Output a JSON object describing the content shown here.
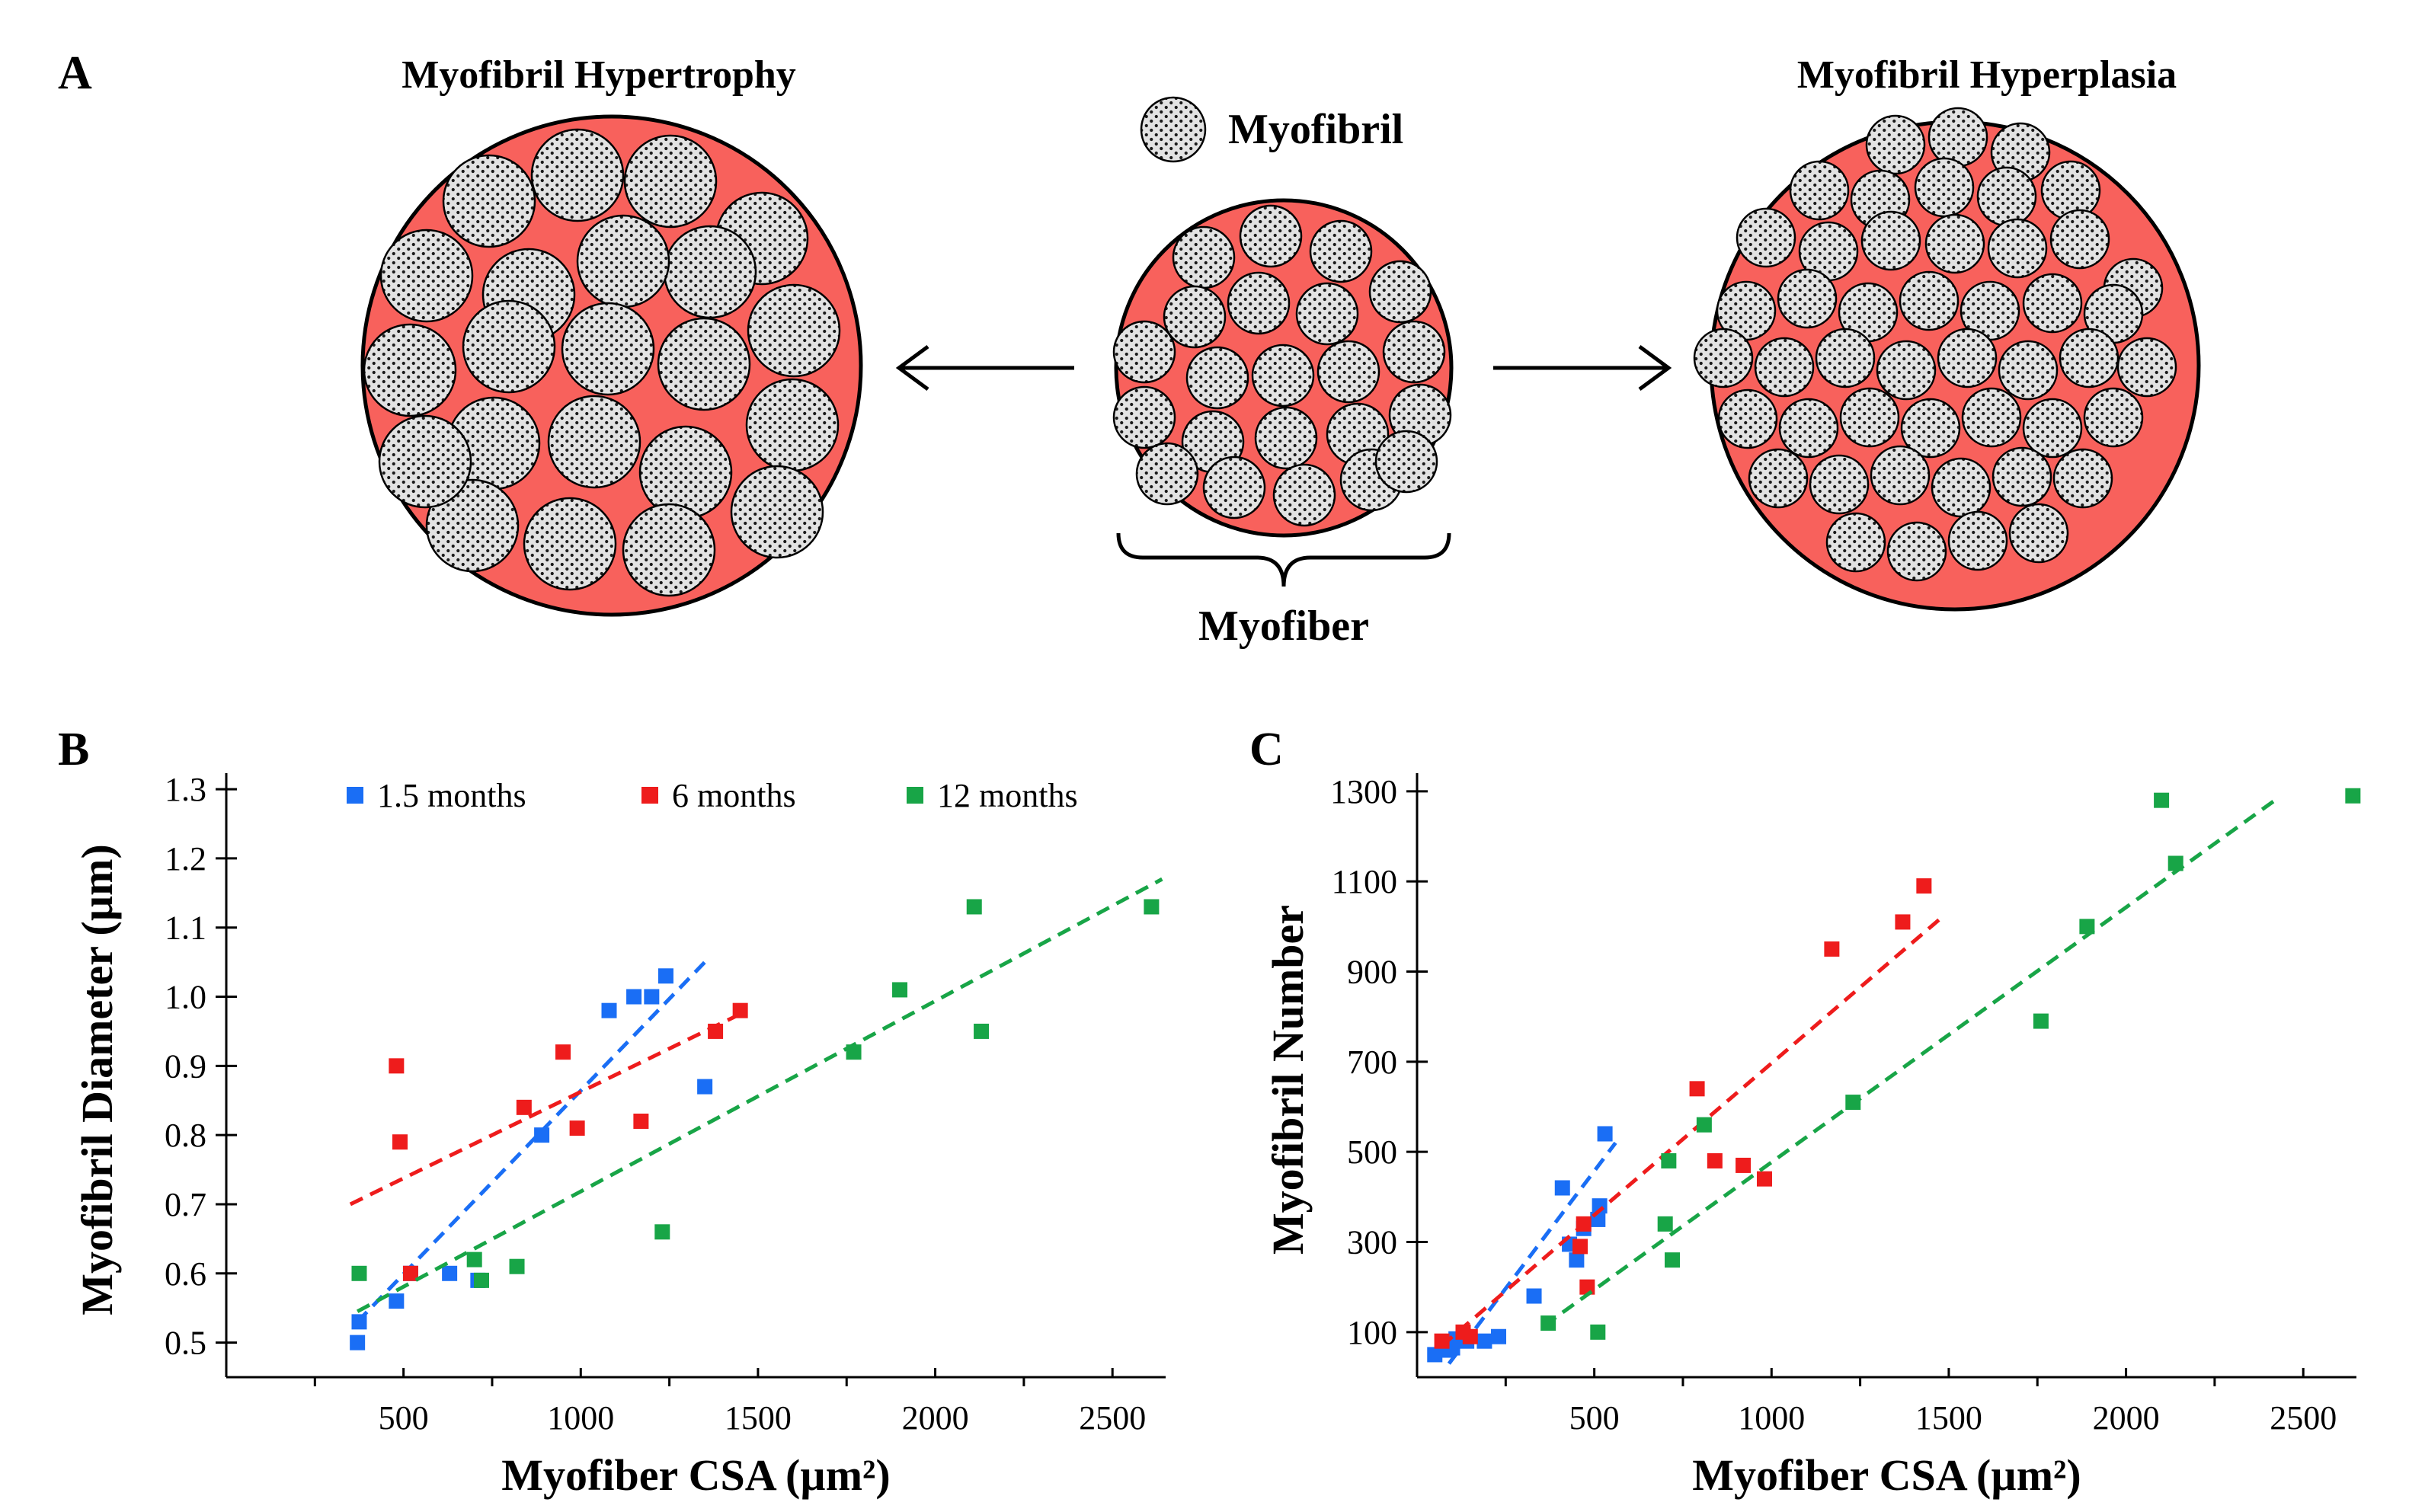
{
  "panels": {
    "a": {
      "letter": "A",
      "hypertrophy_title": "Myofibril Hypertrophy",
      "hyperplasia_title": "Myofibril Hyperplasia",
      "myofibril_label": "Myofibril",
      "myofiber_label": "Myofiber"
    },
    "b": {
      "letter": "B"
    },
    "c": {
      "letter": "C"
    }
  },
  "colors": {
    "fiber_fill": "#f8615c",
    "myofibril_fill": "#e2e2e2",
    "series_1_5_months": "#1a6ef5",
    "series_6_months": "#ee1c1c",
    "series_12_months": "#18a547"
  },
  "legend": [
    "1.5 months",
    "6 months",
    "12 months"
  ],
  "chart_data": [
    {
      "type": "scatter",
      "id": "B",
      "title": "",
      "xlabel": "Myofiber CSA (µm²)",
      "ylabel": "Myofibril Diameter (µm)",
      "xlim": [
        0,
        2650
      ],
      "ylim": [
        0.45,
        1.31
      ],
      "xticks": [
        500,
        1000,
        1500,
        2000,
        2500
      ],
      "yticks": [
        0.5,
        0.6,
        0.7,
        0.8,
        0.9,
        1.0,
        1.1,
        1.2,
        1.3
      ],
      "yticklabels": [
        "0.5",
        "0.6",
        "0.7",
        "0.8",
        "0.9",
        "1.0",
        "1.1",
        "1.2",
        "1.3"
      ],
      "series": [
        {
          "name": "1.5 months",
          "points": [
            [
              370,
              0.5
            ],
            [
              375,
              0.53
            ],
            [
              480,
              0.56
            ],
            [
              520,
              0.6
            ],
            [
              630,
              0.6
            ],
            [
              710,
              0.59
            ],
            [
              890,
              0.8
            ],
            [
              1080,
              0.98
            ],
            [
              1150,
              1.0
            ],
            [
              1200,
              1.0
            ],
            [
              1240,
              1.03
            ],
            [
              1350,
              0.87
            ]
          ],
          "trend": [
            [
              370,
              0.53
            ],
            [
              1350,
              1.05
            ]
          ]
        },
        {
          "name": "6 months",
          "points": [
            [
              480,
              0.9
            ],
            [
              490,
              0.79
            ],
            [
              520,
              0.6
            ],
            [
              840,
              0.84
            ],
            [
              950,
              0.92
            ],
            [
              990,
              0.81
            ],
            [
              1170,
              0.82
            ],
            [
              1380,
              0.95
            ],
            [
              1450,
              0.98
            ]
          ],
          "trend": [
            [
              350,
              0.7
            ],
            [
              1450,
              0.975
            ]
          ]
        },
        {
          "name": "12 months",
          "points": [
            [
              375,
              0.6
            ],
            [
              700,
              0.62
            ],
            [
              720,
              0.59
            ],
            [
              820,
              0.61
            ],
            [
              1230,
              0.66
            ],
            [
              1770,
              0.92
            ],
            [
              1900,
              1.01
            ],
            [
              2110,
              1.13
            ],
            [
              2130,
              0.95
            ],
            [
              2610,
              1.13
            ]
          ],
          "trend": [
            [
              370,
              0.545
            ],
            [
              2640,
              1.17
            ]
          ]
        }
      ]
    },
    {
      "type": "scatter",
      "id": "C",
      "title": "",
      "xlabel": "Myofiber CSA (µm²)",
      "ylabel": "Myofibril Number",
      "xlim": [
        0,
        2650
      ],
      "ylim": [
        0,
        1320
      ],
      "xticks": [
        500,
        1000,
        1500,
        2000,
        2500
      ],
      "yticks": [
        100,
        300,
        500,
        700,
        900,
        1100,
        1300
      ],
      "yticklabels": [
        "100",
        "300",
        "500",
        "700",
        "900",
        "1100",
        "1300"
      ],
      "series": [
        {
          "name": "1.5 months",
          "points": [
            [
              50,
              50
            ],
            [
              80,
              60
            ],
            [
              100,
              65
            ],
            [
              110,
              85
            ],
            [
              140,
              80
            ],
            [
              190,
              80
            ],
            [
              230,
              90
            ],
            [
              330,
              180
            ],
            [
              410,
              420
            ],
            [
              430,
              295
            ],
            [
              450,
              260
            ],
            [
              470,
              330
            ],
            [
              510,
              350
            ],
            [
              515,
              380
            ],
            [
              530,
              540
            ]
          ],
          "trend": [
            [
              90,
              30
            ],
            [
              560,
              520
            ]
          ]
        },
        {
          "name": "6 months",
          "points": [
            [
              70,
              80
            ],
            [
              130,
              100
            ],
            [
              150,
              90
            ],
            [
              460,
              290
            ],
            [
              470,
              340
            ],
            [
              480,
              200
            ],
            [
              790,
              640
            ],
            [
              840,
              480
            ],
            [
              920,
              470
            ],
            [
              980,
              440
            ],
            [
              1170,
              950
            ],
            [
              1370,
              1010
            ],
            [
              1430,
              1090
            ]
          ],
          "trend": [
            [
              70,
              70
            ],
            [
              1480,
              1020
            ]
          ]
        },
        {
          "name": "12 months",
          "points": [
            [
              370,
              120
            ],
            [
              510,
              100
            ],
            [
              700,
              340
            ],
            [
              710,
              480
            ],
            [
              720,
              260
            ],
            [
              810,
              560
            ],
            [
              1230,
              610
            ],
            [
              1760,
              790
            ],
            [
              1890,
              1000
            ],
            [
              2100,
              1280
            ],
            [
              2140,
              1140
            ],
            [
              2640,
              1290
            ]
          ],
          "trend": [
            [
              360,
              115
            ],
            [
              2420,
              1280
            ]
          ]
        }
      ]
    }
  ]
}
